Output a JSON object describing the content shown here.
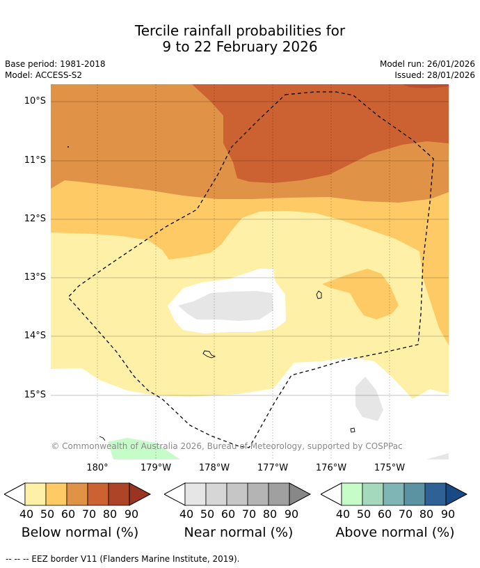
{
  "header": {
    "title_line1": "Tercile rainfall probabilities for",
    "title_line2": "9 to 22 February 2026",
    "base_period": "Base period: 1981-2018",
    "model": "Model: ACCESS-S2",
    "model_run": "Model run: 26/01/2026",
    "issued": "Issued: 28/01/2026"
  },
  "axes": {
    "lat_labels": [
      "10°S",
      "11°S",
      "12°S",
      "13°S",
      "14°S",
      "15°S"
    ],
    "lon_labels": [
      "180°",
      "179°W",
      "178°W",
      "177°W",
      "176°W",
      "175°W"
    ]
  },
  "map": {
    "attribution": "© Commonwealth of Australia 2026, Bureau of Meteorology, supported by COSPPac"
  },
  "colorbars": [
    {
      "title": "Below normal (%)",
      "ticks": [
        "40",
        "50",
        "60",
        "70",
        "80",
        "90"
      ],
      "colors": [
        "#fff0a8",
        "#fdca65",
        "#e09246",
        "#cc6232",
        "#ad4428",
        "#9a3322"
      ]
    },
    {
      "title": "Near normal (%)",
      "ticks": [
        "40",
        "50",
        "60",
        "70",
        "80",
        "90"
      ],
      "colors": [
        "#e6e6e6",
        "#d6d6d6",
        "#c6c6c6",
        "#b4b4b4",
        "#a0a0a0",
        "#888888"
      ]
    },
    {
      "title": "Above normal (%)",
      "ticks": [
        "40",
        "50",
        "60",
        "70",
        "80",
        "90"
      ],
      "colors": [
        "#c6fcc8",
        "#a5d9bd",
        "#7fb6b5",
        "#5b93a3",
        "#2f6197",
        "#1a4a84"
      ]
    }
  ],
  "footer": {
    "legend": "--  --  -- EEZ border V11 (Flanders Marine Institute, 2019)."
  }
}
